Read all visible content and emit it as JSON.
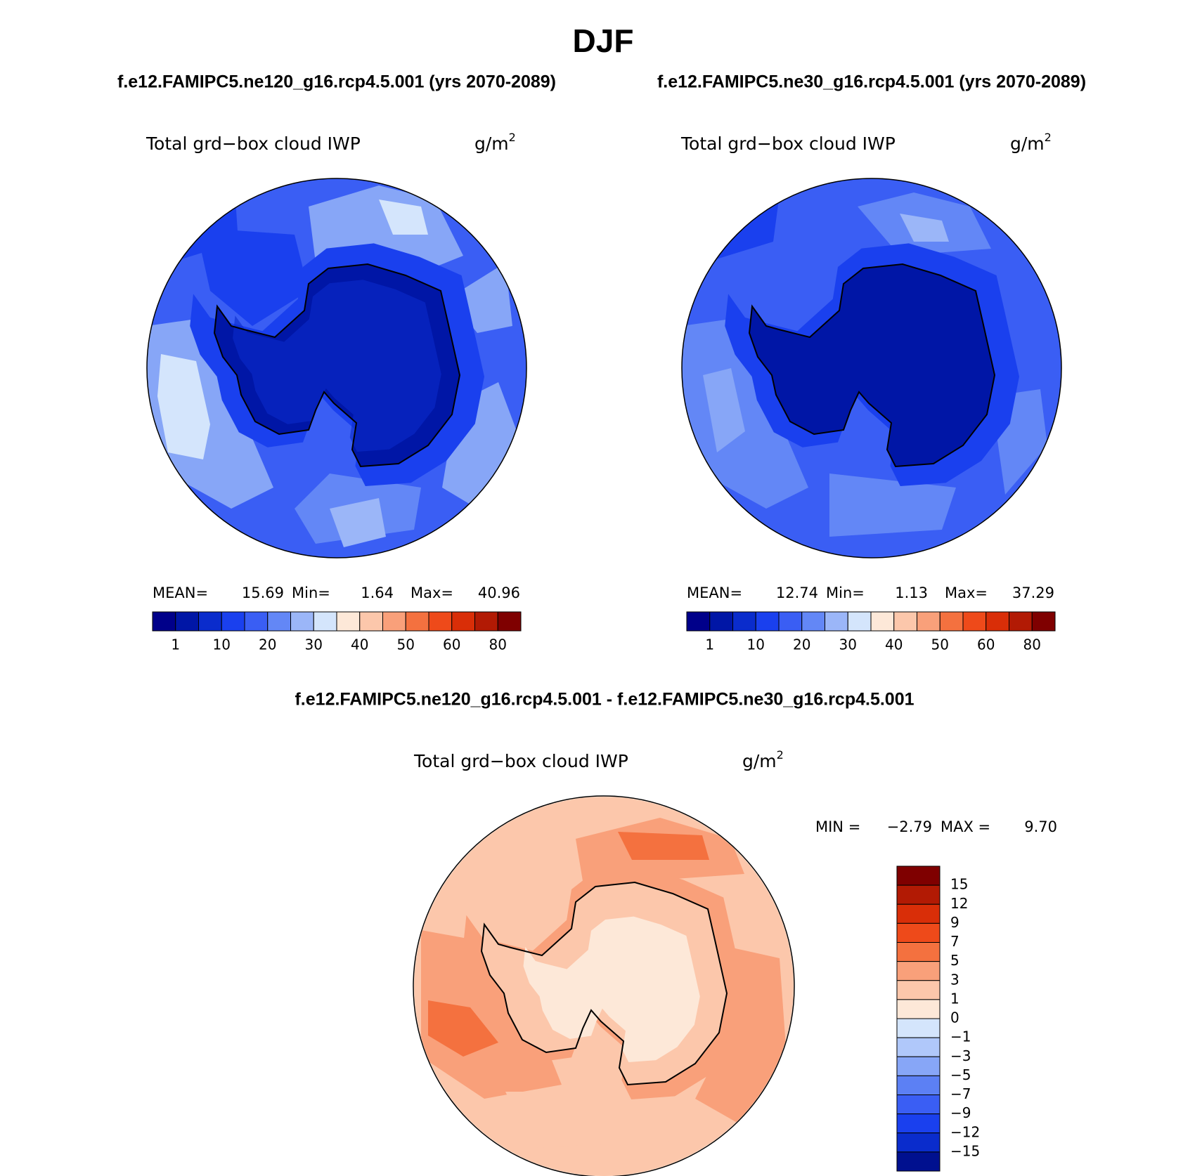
{
  "title": "DJF",
  "panels": [
    {
      "case": "f.e12.FAMIPC5.ne120_g16.rcp4.5.001 (yrs 2070-2089)",
      "variable": "Total grd−box cloud IWP",
      "units": "g/m",
      "units_exponent": "2",
      "stats": [
        {
          "label": "MEAN=",
          "value": "15.69"
        },
        {
          "label": "Min=",
          "value": "1.64"
        },
        {
          "label": "Max=",
          "value": "40.96"
        }
      ]
    },
    {
      "case": "f.e12.FAMIPC5.ne30_g16.rcp4.5.001 (yrs 2070-2089)",
      "variable": "Total grd−box cloud IWP",
      "units": "g/m",
      "units_exponent": "2",
      "stats": [
        {
          "label": "MEAN=",
          "value": "12.74"
        },
        {
          "label": "Min=",
          "value": "1.13"
        },
        {
          "label": "Max=",
          "value": "37.29"
        }
      ]
    }
  ],
  "colorbar": {
    "colors": [
      "#00008a",
      "#0016a6",
      "#0a2ccc",
      "#1a40ee",
      "#3a5ef4",
      "#6387f6",
      "#9bb6f8",
      "#d4e5fc",
      "#fde8d8",
      "#fcc7ab",
      "#f9a07a",
      "#f4713f",
      "#ee4a1a",
      "#d92e08",
      "#b21a04",
      "#7f0000"
    ],
    "labels": [
      "1",
      "10",
      "20",
      "30",
      "40",
      "50",
      "60",
      "80"
    ]
  },
  "difference": {
    "case": "f.e12.FAMIPC5.ne120_g16.rcp4.5.001 - f.e12.FAMIPC5.ne30_g16.rcp4.5.001",
    "variable": "Total grd−box cloud IWP",
    "units": "g/m",
    "units_exponent": "2",
    "stats": [
      {
        "label": "MIN =",
        "value": "−2.79"
      },
      {
        "label": "MAX =",
        "value": "9.70"
      }
    ],
    "colorbar": {
      "colors": [
        "#7f0000",
        "#b21a04",
        "#d92e08",
        "#ee4a1a",
        "#f4713f",
        "#f9a07a",
        "#fcc7ab",
        "#fde8d8",
        "#d4e5fc",
        "#b0c8fa",
        "#87a6f7",
        "#5c80f4",
        "#3a5ef4",
        "#1a40ee",
        "#0a2ccc",
        "#00108f"
      ],
      "labels": [
        "15",
        "12",
        "9",
        "7",
        "5",
        "3",
        "1",
        "0",
        "−1",
        "−3",
        "−5",
        "−7",
        "−9",
        "−12",
        "−15"
      ]
    }
  }
}
